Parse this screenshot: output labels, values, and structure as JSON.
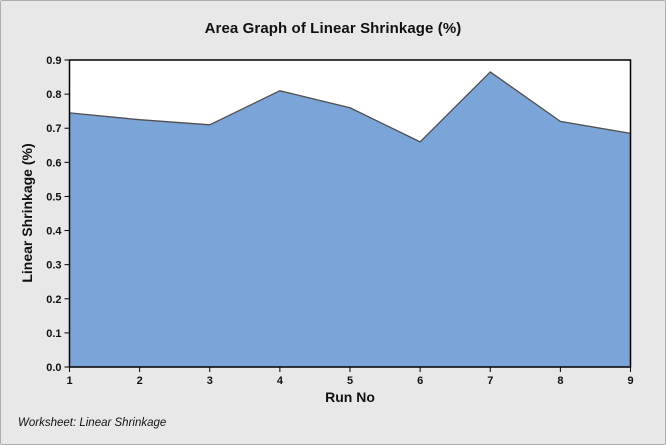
{
  "chart_data": {
    "type": "area",
    "title": "Area Graph of Linear Shrinkage (%)",
    "xlabel": "Run No",
    "ylabel": "Linear Shrinkage (%)",
    "footnote": "Worksheet: Linear Shrinkage",
    "x": [
      1,
      2,
      3,
      4,
      5,
      6,
      7,
      8,
      9
    ],
    "series": [
      {
        "name": "Linear Shrinkage (%)",
        "values": [
          0.745,
          0.725,
          0.71,
          0.81,
          0.76,
          0.66,
          0.865,
          0.72,
          0.685
        ]
      }
    ],
    "xlim": [
      1,
      9
    ],
    "ylim": [
      0,
      0.9
    ],
    "x_ticks": [
      1,
      2,
      3,
      4,
      5,
      6,
      7,
      8,
      9
    ],
    "y_ticks": [
      0,
      0.1,
      0.2,
      0.3,
      0.4,
      0.5,
      0.6,
      0.7,
      0.8,
      0.9
    ],
    "grid": false,
    "legend": "none",
    "colors": {
      "area_fill": "#7ba4d8",
      "area_edge": "#4f4f4f",
      "plot_bg": "#ffffff",
      "plot_border": "#000000",
      "tick": "#000000",
      "canvas_bg": "#e8e8e8",
      "frame_border": "#adadad",
      "text": "#111111"
    }
  }
}
